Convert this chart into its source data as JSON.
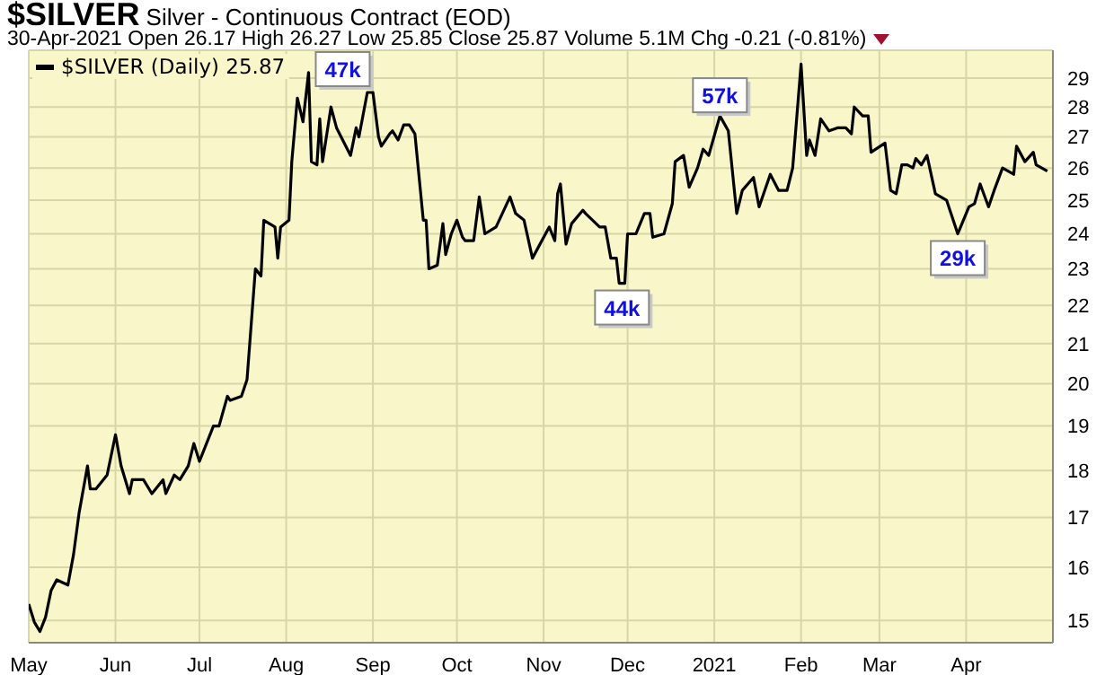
{
  "chart_data": {
    "type": "line",
    "title": "$SILVER Silver - Continuous Contract (EOD)",
    "subtitle": "30-Apr-2021 Open 26.17 High 26.27 Low 25.85 Close 25.87 Volume 5.1M Chg -0.21 (-0.81%)",
    "x": [
      "2020-05-01",
      "2020-05-03",
      "2020-05-05",
      "2020-05-07",
      "2020-05-09",
      "2020-05-11",
      "2020-05-15",
      "2020-05-17",
      "2020-05-19",
      "2020-05-22",
      "2020-05-23",
      "2020-05-25",
      "2020-05-29",
      "2020-06-01",
      "2020-06-03",
      "2020-06-06",
      "2020-06-07",
      "2020-06-11",
      "2020-06-14",
      "2020-06-18",
      "2020-06-19",
      "2020-06-22",
      "2020-06-24",
      "2020-06-27",
      "2020-06-29",
      "2020-07-01",
      "2020-07-06",
      "2020-07-08",
      "2020-07-11",
      "2020-07-12",
      "2020-07-16",
      "2020-07-18",
      "2020-07-21",
      "2020-07-23",
      "2020-07-24",
      "2020-07-28",
      "2020-07-29",
      "2020-07-30",
      "2020-08-02",
      "2020-08-03",
      "2020-08-05",
      "2020-08-07",
      "2020-08-09",
      "2020-08-10",
      "2020-08-12",
      "2020-08-13",
      "2020-08-14",
      "2020-08-17",
      "2020-08-19",
      "2020-08-24",
      "2020-08-26",
      "2020-08-27",
      "2020-08-30",
      "2020-09-01",
      "2020-09-03",
      "2020-09-04",
      "2020-09-07",
      "2020-09-08",
      "2020-09-10",
      "2020-09-12",
      "2020-09-14",
      "2020-09-16",
      "2020-09-19",
      "2020-09-20",
      "2020-09-21",
      "2020-09-24",
      "2020-09-26",
      "2020-09-27",
      "2020-09-29",
      "2020-10-01",
      "2020-10-03",
      "2020-10-04",
      "2020-10-07",
      "2020-10-09",
      "2020-10-11",
      "2020-10-15",
      "2020-10-20",
      "2020-10-22",
      "2020-10-25",
      "2020-10-28",
      "2020-11-03",
      "2020-11-05",
      "2020-11-06",
      "2020-11-07",
      "2020-11-09",
      "2020-11-11",
      "2020-11-15",
      "2020-11-16",
      "2020-11-21",
      "2020-11-23",
      "2020-11-25",
      "2020-11-27",
      "2020-11-28",
      "2020-11-30",
      "2020-12-01",
      "2020-12-04",
      "2020-12-07",
      "2020-12-09",
      "2020-12-10",
      "2020-12-14",
      "2020-12-17",
      "2020-12-18",
      "2020-12-21",
      "2020-12-23",
      "2020-12-26",
      "2020-12-28",
      "2020-12-30",
      "2021-01-03",
      "2021-01-06",
      "2021-01-09",
      "2021-01-11",
      "2021-01-15",
      "2021-01-17",
      "2021-01-21",
      "2021-01-24",
      "2021-01-27",
      "2021-01-29",
      "2021-02-01",
      "2021-02-03",
      "2021-02-04",
      "2021-02-06",
      "2021-02-08",
      "2021-02-11",
      "2021-02-14",
      "2021-02-17",
      "2021-02-19",
      "2021-02-20",
      "2021-02-23",
      "2021-02-25",
      "2021-02-26",
      "2021-03-03",
      "2021-03-05",
      "2021-03-07",
      "2021-03-09",
      "2021-03-11",
      "2021-03-13",
      "2021-03-14",
      "2021-03-16",
      "2021-03-18",
      "2021-03-21",
      "2021-03-25",
      "2021-03-29",
      "2021-04-02",
      "2021-04-04",
      "2021-04-06",
      "2021-04-09",
      "2021-04-11",
      "2021-04-14",
      "2021-04-18",
      "2021-04-19",
      "2021-04-22",
      "2021-04-25",
      "2021-04-26",
      "2021-04-30"
    ],
    "series": [
      {
        "name": "$SILVER (Daily) 25.87",
        "color": "#000000",
        "values": [
          15.3,
          14.97,
          14.8,
          15.06,
          15.56,
          15.76,
          15.66,
          16.25,
          17.1,
          18.1,
          17.6,
          17.6,
          17.9,
          18.8,
          18.1,
          17.5,
          17.8,
          17.8,
          17.5,
          17.8,
          17.5,
          17.9,
          17.8,
          18.1,
          18.6,
          18.2,
          19.0,
          19.0,
          19.7,
          19.6,
          19.7,
          20.1,
          23.0,
          22.8,
          24.4,
          24.2,
          23.3,
          24.2,
          24.4,
          26.2,
          28.3,
          27.5,
          29.2,
          26.2,
          26.1,
          27.6,
          26.2,
          28.0,
          27.3,
          26.4,
          27.3,
          27.0,
          28.5,
          28.5,
          27.0,
          26.7,
          27.1,
          27.2,
          26.9,
          27.4,
          27.4,
          27.1,
          24.4,
          24.4,
          23.0,
          23.1,
          24.3,
          23.4,
          24.0,
          24.4,
          23.9,
          23.8,
          23.8,
          25.1,
          24.0,
          24.2,
          25.1,
          24.6,
          24.4,
          23.3,
          24.2,
          23.8,
          25.2,
          25.5,
          23.7,
          24.3,
          24.7,
          24.6,
          24.2,
          24.2,
          23.3,
          23.3,
          22.6,
          22.6,
          24.0,
          24.0,
          24.6,
          24.6,
          23.9,
          24.0,
          24.9,
          26.2,
          26.4,
          25.4,
          26.0,
          26.6,
          26.4,
          27.7,
          27.2,
          24.6,
          25.3,
          25.7,
          24.8,
          25.8,
          25.3,
          25.3,
          26.0,
          29.5,
          26.4,
          26.9,
          26.4,
          27.6,
          27.2,
          27.3,
          27.3,
          27.1,
          28.0,
          27.7,
          27.7,
          26.5,
          26.8,
          25.3,
          25.2,
          26.1,
          26.1,
          26.0,
          26.3,
          26.1,
          26.4,
          25.2,
          25.0,
          24.0,
          24.8,
          24.9,
          25.5,
          24.8,
          25.3,
          26.0,
          25.8,
          26.7,
          26.2,
          26.5,
          26.1,
          25.9
        ]
      }
    ],
    "xlim": [
      "2020-05-01",
      "2021-05-02"
    ],
    "xticks": [
      {
        "value": "2020-05-01",
        "label": "May"
      },
      {
        "value": "2020-06-01",
        "label": "Jun"
      },
      {
        "value": "2020-07-01",
        "label": "Jul"
      },
      {
        "value": "2020-08-01",
        "label": "Aug"
      },
      {
        "value": "2020-09-01",
        "label": "Sep"
      },
      {
        "value": "2020-10-01",
        "label": "Oct"
      },
      {
        "value": "2020-11-01",
        "label": "Nov"
      },
      {
        "value": "2020-12-01",
        "label": "Dec"
      },
      {
        "value": "2021-01-01",
        "label": "2021"
      },
      {
        "value": "2021-02-01",
        "label": "Feb"
      },
      {
        "value": "2021-03-01",
        "label": "Mar"
      },
      {
        "value": "2021-04-01",
        "label": "Apr"
      }
    ],
    "ylim": [
      14.6,
      30
    ],
    "yticks": [
      15,
      16,
      17,
      18,
      19,
      20,
      21,
      22,
      23,
      24,
      25,
      26,
      27,
      28,
      29
    ],
    "log": "y",
    "grid": true,
    "legend": "top left",
    "annotations": [
      {
        "text": "47k",
        "x": "2020-08-09",
        "y": 29.2
      },
      {
        "text": "44k",
        "x": "2020-11-29",
        "y": 22.6
      },
      {
        "text": "57k",
        "x": "2021-01-03",
        "y": 27.7
      },
      {
        "text": "29k",
        "x": "2021-03-29",
        "y": 24.0
      }
    ]
  }
}
